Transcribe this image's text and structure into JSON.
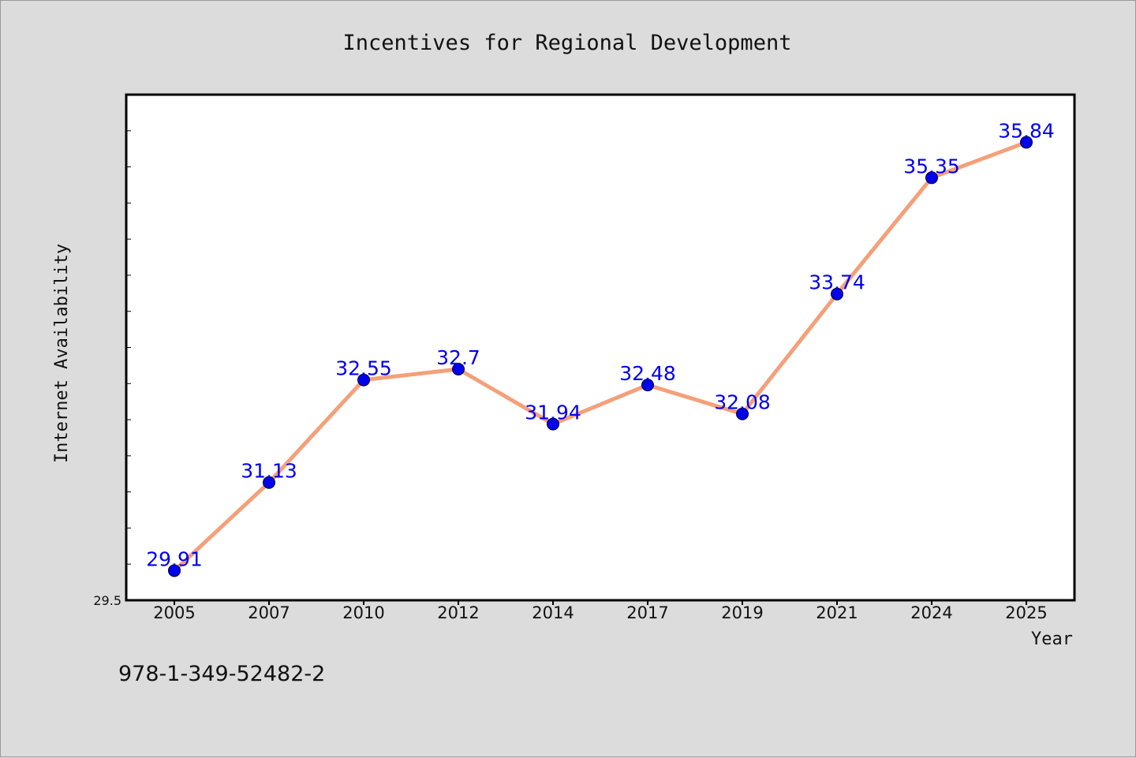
{
  "chart_data": {
    "type": "line",
    "title": "Incentives for Regional Development",
    "xlabel": "Year",
    "ylabel": "Internet Availability",
    "categories": [
      "2005",
      "2007",
      "2010",
      "2012",
      "2014",
      "2017",
      "2019",
      "2021",
      "2024",
      "2025"
    ],
    "values": [
      29.91,
      31.13,
      32.55,
      32.7,
      31.94,
      32.48,
      32.08,
      33.74,
      35.35,
      35.84
    ],
    "data_labels": [
      "29.91",
      "31.13",
      "32.55",
      "32.7",
      "31.94",
      "32.48",
      "32.08",
      "33.74",
      "35.35",
      "35.84"
    ],
    "ylim": [
      29.5,
      36.5
    ],
    "yticks_labeled": [
      "29.5"
    ],
    "line_color": "#f4a07a",
    "marker_color": "#0000ee",
    "label_color": "#0000ee",
    "plot_background": "#ffffff",
    "page_background": "#dcdcdc",
    "grid": false,
    "legend": "none"
  },
  "footer": {
    "isbn": "978-1-349-52482-2"
  }
}
